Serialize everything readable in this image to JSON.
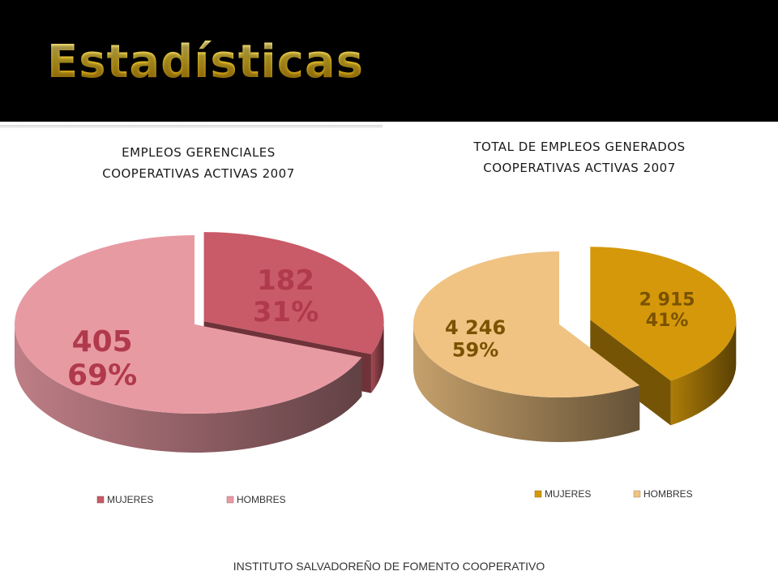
{
  "slide": {
    "title": "Estadísticas",
    "footer": "INSTITUTO SALVADOREÑO DE FOMENTO COOPERATIVO"
  },
  "chart_data": [
    {
      "type": "pie",
      "title": "EMPLEOS GERENCIALES",
      "subtitle": "COOPERATIVAS ACTIVAS 2007",
      "categories": [
        "MUJERES",
        "HOMBRES"
      ],
      "values": [
        182,
        405
      ],
      "percent_labels": [
        "31%",
        "69%"
      ],
      "value_labels": [
        "182",
        "405"
      ],
      "colors": [
        "#c95a67",
        "#e89aa3"
      ],
      "legend_position": "bottom"
    },
    {
      "type": "pie",
      "title": "TOTAL DE EMPLEOS GENERADOS",
      "subtitle": "COOPERATIVAS ACTIVAS 2007",
      "categories": [
        "MUJERES",
        "HOMBRES"
      ],
      "values": [
        2915,
        4246
      ],
      "percent_labels": [
        "41%",
        "59%"
      ],
      "value_labels": [
        "2 915",
        "4 246"
      ],
      "colors": [
        "#d4980a",
        "#f0c383"
      ],
      "legend_position": "bottom"
    }
  ]
}
